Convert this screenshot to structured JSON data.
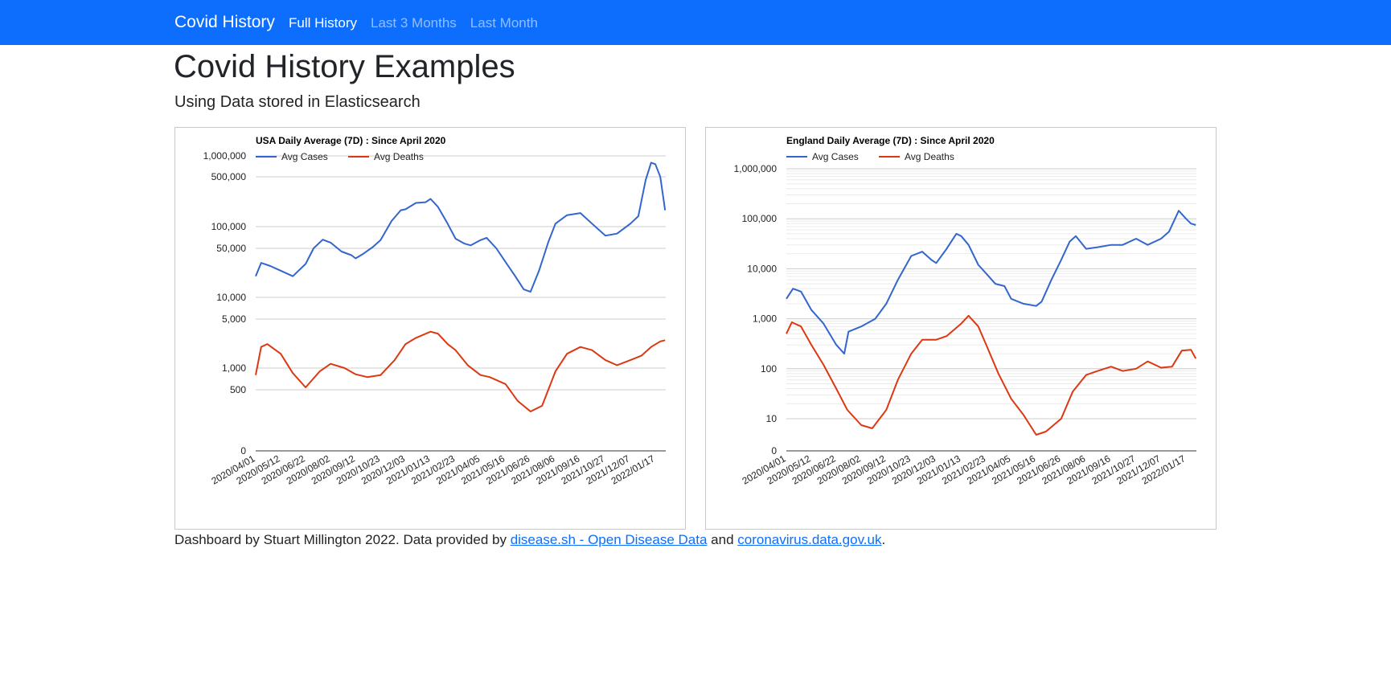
{
  "navbar": {
    "brand": "Covid History",
    "links": [
      {
        "label": "Full History",
        "active": true
      },
      {
        "label": "Last 3 Months",
        "active": false
      },
      {
        "label": "Last Month",
        "active": false
      }
    ]
  },
  "header": {
    "title": "Covid History Examples",
    "subtitle": "Using Data stored in Elasticsearch"
  },
  "colors": {
    "cases": "#3366cc",
    "deaths": "#dc3912",
    "nav": "#0d6efd"
  },
  "chart_data": [
    {
      "type": "line",
      "title": "USA Daily Average (7D) : Since April 2020",
      "legend": [
        "Avg Cases",
        "Avg Deaths"
      ],
      "legend_position": "top-left",
      "y_scale": "log",
      "grid": true,
      "y_ticks": [
        {
          "v": 0,
          "label": "0"
        },
        {
          "v": 500,
          "label": "500"
        },
        {
          "v": 1000,
          "label": "1,000"
        },
        {
          "v": 5000,
          "label": "5,000"
        },
        {
          "v": 10000,
          "label": "10,000"
        },
        {
          "v": 50000,
          "label": "50,000"
        },
        {
          "v": 100000,
          "label": "100,000"
        },
        {
          "v": 500000,
          "label": "500,000"
        },
        {
          "v": 1000000,
          "label": "1,000,000"
        }
      ],
      "x_ticks": [
        "2020/04/01",
        "2020/05/12",
        "2020/06/22",
        "2020/08/02",
        "2020/09/12",
        "2020/10/23",
        "2020/12/03",
        "2021/01/13",
        "2021/02/23",
        "2021/04/05",
        "2021/05/16",
        "2021/06/26",
        "2021/08/06",
        "2021/09/16",
        "2021/10/27",
        "2021/12/07",
        "2022/01/17"
      ],
      "series": [
        {
          "name": "Avg Cases",
          "points": [
            [
              "2020/04/01",
              20000
            ],
            [
              "2020/04/10",
              31000
            ],
            [
              "2020/04/25",
              28000
            ],
            [
              "2020/05/12",
              24000
            ],
            [
              "2020/06/01",
              20000
            ],
            [
              "2020/06/22",
              30000
            ],
            [
              "2020/07/05",
              50000
            ],
            [
              "2020/07/20",
              66000
            ],
            [
              "2020/08/02",
              60000
            ],
            [
              "2020/08/20",
              45000
            ],
            [
              "2020/09/05",
              40000
            ],
            [
              "2020/09/12",
              36000
            ],
            [
              "2020/09/25",
              42000
            ],
            [
              "2020/10/10",
              52000
            ],
            [
              "2020/10/23",
              65000
            ],
            [
              "2020/11/10",
              120000
            ],
            [
              "2020/11/25",
              170000
            ],
            [
              "2020/12/03",
              175000
            ],
            [
              "2020/12/20",
              215000
            ],
            [
              "2021/01/05",
              220000
            ],
            [
              "2021/01/13",
              245000
            ],
            [
              "2021/01/25",
              190000
            ],
            [
              "2021/02/10",
              110000
            ],
            [
              "2021/02/23",
              68000
            ],
            [
              "2021/03/10",
              58000
            ],
            [
              "2021/03/20",
              55000
            ],
            [
              "2021/04/05",
              65000
            ],
            [
              "2021/04/15",
              70000
            ],
            [
              "2021/05/01",
              50000
            ],
            [
              "2021/05/16",
              32000
            ],
            [
              "2021/06/01",
              20000
            ],
            [
              "2021/06/15",
              13000
            ],
            [
              "2021/06/26",
              12000
            ],
            [
              "2021/07/10",
              24000
            ],
            [
              "2021/07/25",
              60000
            ],
            [
              "2021/08/06",
              110000
            ],
            [
              "2021/08/25",
              145000
            ],
            [
              "2021/09/16",
              155000
            ],
            [
              "2021/10/05",
              110000
            ],
            [
              "2021/10/27",
              75000
            ],
            [
              "2021/11/15",
              80000
            ],
            [
              "2021/12/07",
              110000
            ],
            [
              "2021/12/20",
              140000
            ],
            [
              "2022/01/01",
              450000
            ],
            [
              "2022/01/10",
              800000
            ],
            [
              "2022/01/17",
              760000
            ],
            [
              "2022/01/25",
              500000
            ],
            [
              "2022/02/02",
              170000
            ]
          ]
        },
        {
          "name": "Avg Deaths",
          "points": [
            [
              "2020/04/01",
              800
            ],
            [
              "2020/04/10",
              2000
            ],
            [
              "2020/04/20",
              2200
            ],
            [
              "2020/05/12",
              1600
            ],
            [
              "2020/06/01",
              850
            ],
            [
              "2020/06/22",
              540
            ],
            [
              "2020/07/15",
              900
            ],
            [
              "2020/08/02",
              1150
            ],
            [
              "2020/08/25",
              1000
            ],
            [
              "2020/09/12",
              820
            ],
            [
              "2020/10/01",
              750
            ],
            [
              "2020/10/23",
              800
            ],
            [
              "2020/11/15",
              1300
            ],
            [
              "2020/12/03",
              2200
            ],
            [
              "2020/12/20",
              2700
            ],
            [
              "2021/01/13",
              3300
            ],
            [
              "2021/01/25",
              3100
            ],
            [
              "2021/02/10",
              2200
            ],
            [
              "2021/02/23",
              1800
            ],
            [
              "2021/03/15",
              1100
            ],
            [
              "2021/04/05",
              800
            ],
            [
              "2021/04/20",
              750
            ],
            [
              "2021/05/16",
              600
            ],
            [
              "2021/06/05",
              350
            ],
            [
              "2021/06/26",
              250
            ],
            [
              "2021/07/15",
              300
            ],
            [
              "2021/08/06",
              900
            ],
            [
              "2021/08/25",
              1600
            ],
            [
              "2021/09/16",
              2000
            ],
            [
              "2021/10/05",
              1800
            ],
            [
              "2021/10/27",
              1300
            ],
            [
              "2021/11/15",
              1100
            ],
            [
              "2021/12/07",
              1300
            ],
            [
              "2021/12/25",
              1500
            ],
            [
              "2022/01/10",
              2000
            ],
            [
              "2022/01/25",
              2400
            ],
            [
              "2022/02/02",
              2500
            ]
          ]
        }
      ]
    },
    {
      "type": "line",
      "title": "England Daily Average (7D) : Since April 2020",
      "legend": [
        "Avg Cases",
        "Avg Deaths"
      ],
      "legend_position": "top-left",
      "y_scale": "log",
      "grid": true,
      "y_ticks": [
        {
          "v": 0,
          "label": "0"
        },
        {
          "v": 10,
          "label": "10"
        },
        {
          "v": 100,
          "label": "100"
        },
        {
          "v": 1000,
          "label": "1,000"
        },
        {
          "v": 10000,
          "label": "10,000"
        },
        {
          "v": 100000,
          "label": "100,000"
        },
        {
          "v": 1000000,
          "label": "1,000,000"
        }
      ],
      "x_ticks": [
        "2020/04/01",
        "2020/05/12",
        "2020/06/22",
        "2020/08/02",
        "2020/09/12",
        "2020/10/23",
        "2020/12/03",
        "2021/01/13",
        "2021/02/23",
        "2021/04/05",
        "2021/05/16",
        "2021/06/26",
        "2021/08/06",
        "2021/09/16",
        "2021/10/27",
        "2021/12/07",
        "2022/01/17"
      ],
      "series": [
        {
          "name": "Avg Cases",
          "points": [
            [
              "2020/04/01",
              2500
            ],
            [
              "2020/04/12",
              4000
            ],
            [
              "2020/04/25",
              3500
            ],
            [
              "2020/05/12",
              1500
            ],
            [
              "2020/06/01",
              800
            ],
            [
              "2020/06/22",
              300
            ],
            [
              "2020/07/05",
              200
            ],
            [
              "2020/07/12",
              550
            ],
            [
              "2020/08/02",
              700
            ],
            [
              "2020/08/25",
              1000
            ],
            [
              "2020/09/12",
              2000
            ],
            [
              "2020/10/01",
              6000
            ],
            [
              "2020/10/23",
              18000
            ],
            [
              "2020/11/10",
              22000
            ],
            [
              "2020/11/25",
              15000
            ],
            [
              "2020/12/03",
              13000
            ],
            [
              "2020/12/20",
              25000
            ],
            [
              "2021/01/05",
              50000
            ],
            [
              "2021/01/13",
              45000
            ],
            [
              "2021/01/25",
              30000
            ],
            [
              "2021/02/10",
              12000
            ],
            [
              "2021/02/23",
              8000
            ],
            [
              "2021/03/10",
              5000
            ],
            [
              "2021/03/25",
              4500
            ],
            [
              "2021/04/05",
              2500
            ],
            [
              "2021/04/25",
              2000
            ],
            [
              "2021/05/16",
              1800
            ],
            [
              "2021/05/25",
              2200
            ],
            [
              "2021/06/10",
              6000
            ],
            [
              "2021/06/26",
              15000
            ],
            [
              "2021/07/10",
              35000
            ],
            [
              "2021/07/20",
              45000
            ],
            [
              "2021/08/06",
              25000
            ],
            [
              "2021/08/25",
              27000
            ],
            [
              "2021/09/16",
              30000
            ],
            [
              "2021/10/05",
              30000
            ],
            [
              "2021/10/27",
              40000
            ],
            [
              "2021/11/15",
              30000
            ],
            [
              "2021/12/07",
              40000
            ],
            [
              "2021/12/20",
              55000
            ],
            [
              "2022/01/05",
              145000
            ],
            [
              "2022/01/17",
              100000
            ],
            [
              "2022/01/25",
              80000
            ],
            [
              "2022/02/02",
              75000
            ]
          ]
        },
        {
          "name": "Avg Deaths",
          "points": [
            [
              "2020/04/01",
              500
            ],
            [
              "2020/04/10",
              850
            ],
            [
              "2020/04/25",
              700
            ],
            [
              "2020/05/12",
              300
            ],
            [
              "2020/06/01",
              120
            ],
            [
              "2020/06/22",
              40
            ],
            [
              "2020/07/10",
              15
            ],
            [
              "2020/08/02",
              8
            ],
            [
              "2020/08/20",
              7
            ],
            [
              "2020/09/12",
              15
            ],
            [
              "2020/10/01",
              60
            ],
            [
              "2020/10/23",
              200
            ],
            [
              "2020/11/10",
              380
            ],
            [
              "2020/12/03",
              380
            ],
            [
              "2020/12/20",
              450
            ],
            [
              "2021/01/13",
              800
            ],
            [
              "2021/01/25",
              1150
            ],
            [
              "2021/02/10",
              700
            ],
            [
              "2021/02/23",
              300
            ],
            [
              "2021/03/15",
              80
            ],
            [
              "2021/04/05",
              25
            ],
            [
              "2021/04/25",
              12
            ],
            [
              "2021/05/16",
              5
            ],
            [
              "2021/06/01",
              6
            ],
            [
              "2021/06/26",
              10
            ],
            [
              "2021/07/15",
              35
            ],
            [
              "2021/08/06",
              75
            ],
            [
              "2021/08/25",
              90
            ],
            [
              "2021/09/16",
              110
            ],
            [
              "2021/10/05",
              90
            ],
            [
              "2021/10/27",
              100
            ],
            [
              "2021/11/15",
              140
            ],
            [
              "2021/12/07",
              105
            ],
            [
              "2021/12/25",
              110
            ],
            [
              "2022/01/10",
              230
            ],
            [
              "2022/01/25",
              240
            ],
            [
              "2022/02/02",
              160
            ]
          ]
        }
      ]
    }
  ],
  "footer": {
    "prefix": "Dashboard by Stuart Millington 2022. Data provided by ",
    "link1": "disease.sh - Open Disease Data",
    "middle": " and ",
    "link2": "coronavirus.data.gov.uk",
    "suffix": "."
  }
}
